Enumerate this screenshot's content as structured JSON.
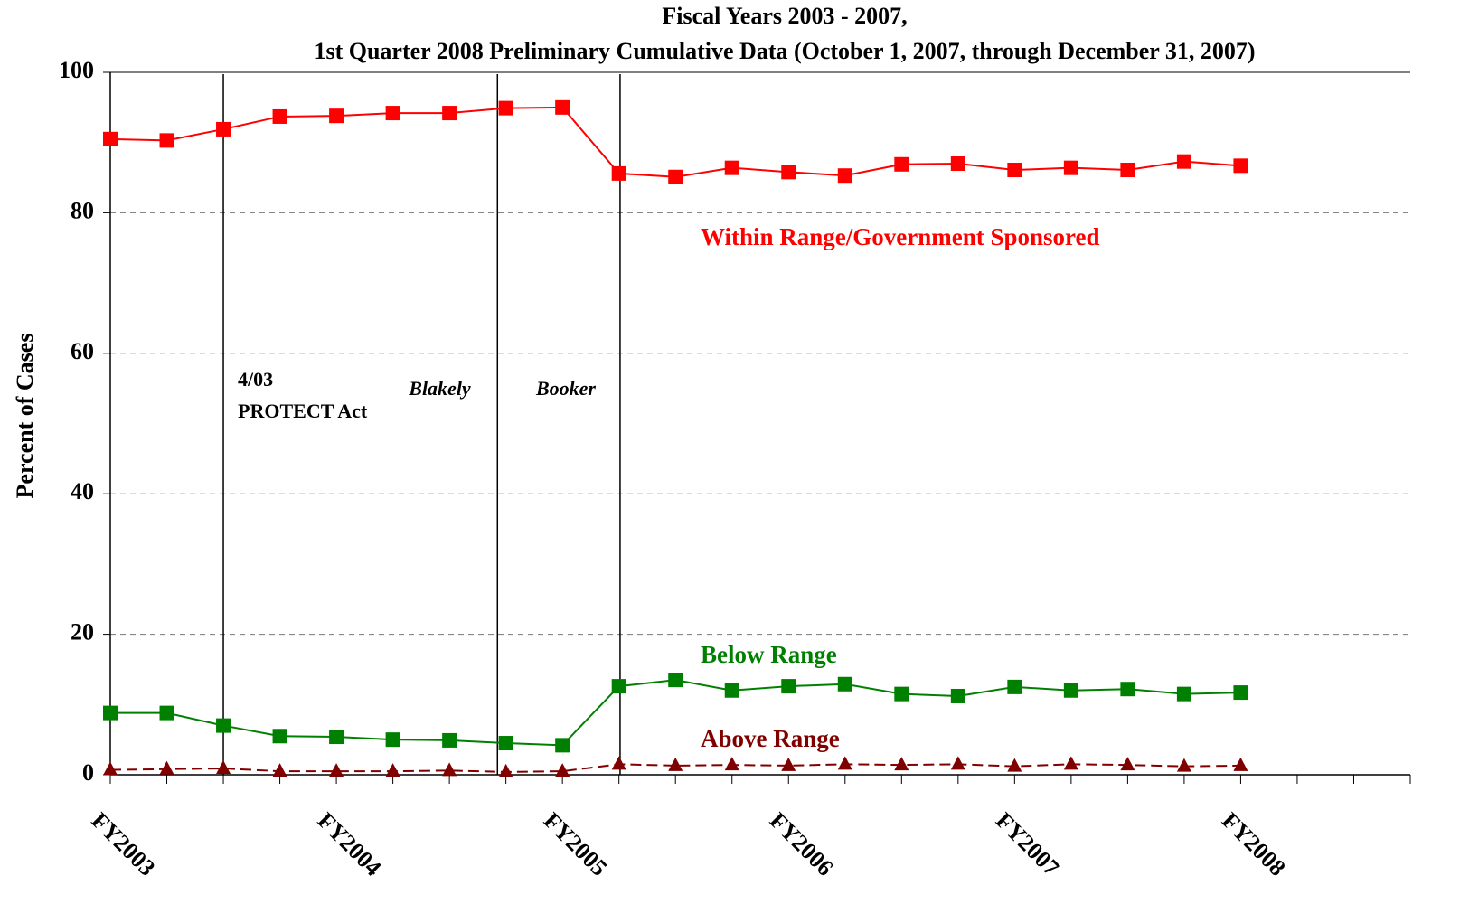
{
  "chart_data": {
    "type": "line",
    "title": [
      "Fiscal Years 2003 - 2007,",
      "1st Quarter 2008 Preliminary Cumulative Data (October 1, 2007, through December 31, 2007)"
    ],
    "y_label": "Percent of Cases",
    "categories": [
      "FY2003",
      null,
      null,
      null,
      "FY2004",
      null,
      null,
      null,
      "FY2005",
      null,
      null,
      null,
      "FY2006",
      null,
      null,
      null,
      "FY2007",
      null,
      null,
      null,
      "FY2008",
      null,
      null,
      null
    ],
    "series": [
      {
        "name": "Within Range/Government Sponsored",
        "color": "#ff0000",
        "marker": "square",
        "dashed": false,
        "values": [
          90.5,
          90.3,
          91.9,
          93.7,
          93.8,
          94.2,
          94.2,
          94.9,
          95.0,
          85.6,
          85.1,
          86.4,
          85.8,
          85.3,
          86.9,
          87.0,
          86.1,
          86.4,
          86.1,
          87.3,
          86.7,
          null,
          null,
          null
        ]
      },
      {
        "name": "Below Range",
        "color": "#008000",
        "marker": "square",
        "dashed": false,
        "values": [
          8.8,
          8.8,
          7.0,
          5.5,
          5.4,
          5.0,
          4.9,
          4.5,
          4.2,
          12.6,
          13.5,
          12.0,
          12.6,
          12.9,
          11.5,
          11.2,
          12.5,
          12.0,
          12.2,
          11.5,
          11.7,
          null,
          null,
          null
        ]
      },
      {
        "name": "Above Range",
        "color": "#800000",
        "marker": "triangle",
        "dashed": true,
        "values": [
          0.7,
          0.8,
          0.9,
          0.5,
          0.5,
          0.5,
          0.6,
          0.4,
          0.5,
          1.5,
          1.3,
          1.4,
          1.3,
          1.5,
          1.4,
          1.5,
          1.2,
          1.5,
          1.4,
          1.2,
          1.3,
          null,
          null,
          null
        ]
      }
    ],
    "events": [
      {
        "x": 2,
        "label": [
          "4/03",
          "PROTECT Act"
        ],
        "italic": false
      },
      {
        "x": 6.85,
        "label": [
          "Blakely"
        ],
        "italic": true
      },
      {
        "x": 9.02,
        "label": [
          "Booker"
        ],
        "italic": true
      }
    ],
    "ylim": [
      0,
      100
    ],
    "yticks": [
      0,
      20,
      40,
      60,
      80,
      100
    ],
    "grid": true
  }
}
